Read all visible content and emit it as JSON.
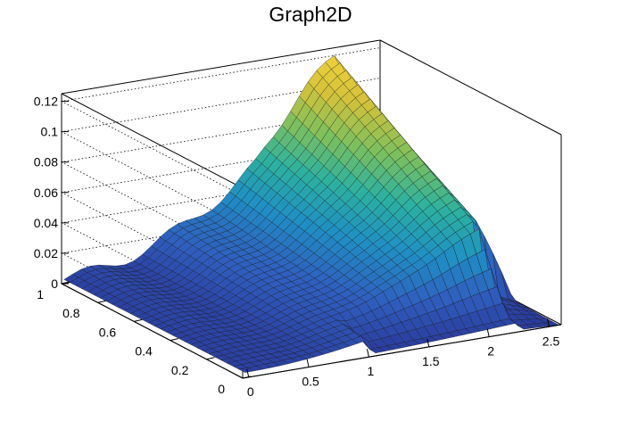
{
  "chart_data": {
    "type": "surface3d",
    "title": "Graph2D",
    "x_range": [
      -0.05,
      2.6
    ],
    "y_range": [
      0,
      1
    ],
    "z_range": [
      0,
      0.125
    ],
    "x_ticks": [
      {
        "value": 0,
        "label": "0"
      },
      {
        "value": 0.5,
        "label": "0.5"
      },
      {
        "value": 1,
        "label": "1"
      },
      {
        "value": 1.5,
        "label": "1.5"
      },
      {
        "value": 2,
        "label": "2"
      },
      {
        "value": 2.5,
        "label": "2.5"
      }
    ],
    "y_ticks": [
      {
        "value": 0,
        "label": "0"
      },
      {
        "value": 0.2,
        "label": "0.2"
      },
      {
        "value": 0.4,
        "label": "0.4"
      },
      {
        "value": 0.6,
        "label": "0.6"
      },
      {
        "value": 0.8,
        "label": "0.8"
      },
      {
        "value": 1,
        "label": "1"
      }
    ],
    "z_ticks": [
      {
        "value": 0,
        "label": "0"
      },
      {
        "value": 0.02,
        "label": "0.02"
      },
      {
        "value": 0.04,
        "label": "0.04"
      },
      {
        "value": 0.06,
        "label": "0.06"
      },
      {
        "value": 0.08,
        "label": "0.08"
      },
      {
        "value": 0.1,
        "label": "0.1"
      },
      {
        "value": 0.12,
        "label": "0.12"
      }
    ],
    "grid": true,
    "colormap": [
      "#2a3a9c",
      "#2f5fbf",
      "#1f8fc4",
      "#2bb1a0",
      "#7dc05d",
      "#d4c23a",
      "#f4d43a"
    ],
    "surface_note_values": {
      "peak_z": 0.123,
      "peak_x": 2.0,
      "peak_y": 1.0,
      "cutoff_x": 2.25
    }
  }
}
